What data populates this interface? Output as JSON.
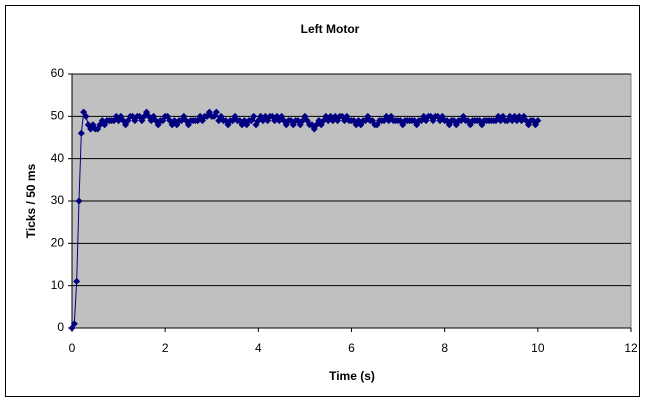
{
  "chart_data": {
    "type": "scatter",
    "title": "Left Motor",
    "x_label": "Time (s)",
    "y_label": "Ticks / 50 ms",
    "xlim": [
      0,
      12
    ],
    "xticks": [
      0,
      2,
      4,
      6,
      8,
      10,
      12
    ],
    "ylim": [
      0,
      60
    ],
    "yticks": [
      0,
      10,
      20,
      30,
      40,
      50,
      60
    ],
    "grid": true,
    "series": [
      {
        "color": "#000080",
        "x": [
          0,
          0.05,
          0.1,
          0.15,
          0.2,
          0.25,
          0.3,
          0.35,
          0.4,
          0.45,
          0.5,
          0.55,
          0.6,
          0.65,
          0.7,
          0.75,
          0.8,
          0.85,
          0.9,
          0.95,
          1,
          1.05,
          1.1,
          1.15,
          1.2,
          1.25,
          1.3,
          1.35,
          1.4,
          1.45,
          1.5,
          1.55,
          1.6,
          1.65,
          1.7,
          1.75,
          1.8,
          1.85,
          1.9,
          1.95,
          2,
          2.05,
          2.1,
          2.15,
          2.2,
          2.25,
          2.3,
          2.35,
          2.4,
          2.45,
          2.5,
          2.55,
          2.6,
          2.65,
          2.7,
          2.75,
          2.8,
          2.85,
          2.9,
          2.95,
          3,
          3.05,
          3.1,
          3.15,
          3.2,
          3.25,
          3.3,
          3.35,
          3.4,
          3.45,
          3.5,
          3.55,
          3.6,
          3.65,
          3.7,
          3.75,
          3.8,
          3.85,
          3.9,
          3.95,
          4,
          4.05,
          4.1,
          4.15,
          4.2,
          4.25,
          4.3,
          4.35,
          4.4,
          4.45,
          4.5,
          4.55,
          4.6,
          4.65,
          4.7,
          4.75,
          4.8,
          4.85,
          4.9,
          4.95,
          5,
          5.05,
          5.1,
          5.15,
          5.2,
          5.25,
          5.3,
          5.35,
          5.4,
          5.45,
          5.5,
          5.55,
          5.6,
          5.65,
          5.7,
          5.75,
          5.8,
          5.85,
          5.9,
          5.95,
          6,
          6.05,
          6.1,
          6.15,
          6.2,
          6.25,
          6.3,
          6.35,
          6.4,
          6.45,
          6.5,
          6.55,
          6.6,
          6.65,
          6.7,
          6.75,
          6.8,
          6.85,
          6.9,
          6.95,
          7,
          7.05,
          7.1,
          7.15,
          7.2,
          7.25,
          7.3,
          7.35,
          7.4,
          7.45,
          7.5,
          7.55,
          7.6,
          7.65,
          7.7,
          7.75,
          7.8,
          7.85,
          7.9,
          7.95,
          8,
          8.05,
          8.1,
          8.15,
          8.2,
          8.25,
          8.3,
          8.35,
          8.4,
          8.45,
          8.5,
          8.55,
          8.6,
          8.65,
          8.7,
          8.75,
          8.8,
          8.85,
          8.9,
          8.95,
          9,
          9.05,
          9.1,
          9.15,
          9.2,
          9.25,
          9.3,
          9.35,
          9.4,
          9.45,
          9.5,
          9.55,
          9.6,
          9.65,
          9.7,
          9.75,
          9.8,
          9.85,
          9.9,
          9.95,
          10
        ],
        "values": [
          0,
          1,
          11,
          30,
          46,
          51,
          50,
          48,
          47,
          48,
          47,
          47,
          48,
          49,
          48,
          49,
          49,
          49,
          49,
          50,
          49,
          50,
          49,
          48,
          49,
          50,
          50,
          49,
          50,
          50,
          49,
          50,
          51,
          50,
          49,
          50,
          49,
          48,
          49,
          49,
          50,
          50,
          49,
          48,
          49,
          48,
          49,
          49,
          50,
          49,
          48,
          49,
          49,
          49,
          49,
          50,
          49,
          50,
          50,
          51,
          50,
          50,
          51,
          49,
          50,
          49,
          49,
          48,
          49,
          49,
          50,
          49,
          49,
          48,
          49,
          48,
          49,
          49,
          50,
          48,
          49,
          50,
          49,
          50,
          49,
          50,
          50,
          49,
          50,
          49,
          50,
          49,
          48,
          49,
          49,
          48,
          49,
          49,
          48,
          49,
          50,
          49,
          48,
          48,
          47,
          48,
          49,
          48,
          49,
          50,
          49,
          50,
          49,
          50,
          49,
          50,
          50,
          49,
          50,
          49,
          49,
          49,
          48,
          49,
          48,
          49,
          49,
          50,
          49,
          49,
          48,
          48,
          49,
          49,
          49,
          50,
          49,
          50,
          49,
          49,
          49,
          49,
          48,
          49,
          49,
          49,
          49,
          49,
          48,
          49,
          49,
          50,
          49,
          50,
          50,
          49,
          50,
          50,
          49,
          50,
          49,
          49,
          48,
          49,
          49,
          48,
          49,
          49,
          50,
          49,
          49,
          48,
          49,
          49,
          49,
          49,
          48,
          49,
          49,
          49,
          49,
          49,
          49,
          50,
          49,
          50,
          49,
          49,
          50,
          49,
          50,
          49,
          50,
          49,
          50,
          49,
          48,
          49,
          49,
          48,
          49
        ]
      }
    ]
  }
}
